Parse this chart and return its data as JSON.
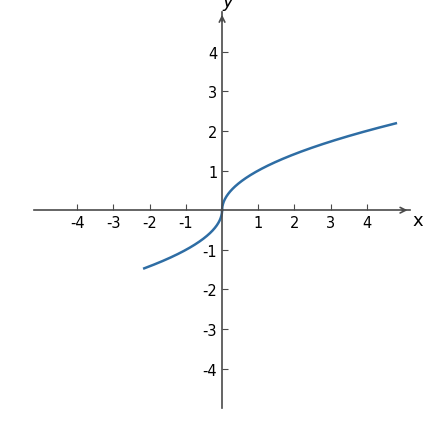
{
  "curve_color": "#2e6da4",
  "curve_linewidth": 1.8,
  "xlim": [
    -5.2,
    5.2
  ],
  "ylim": [
    -5.0,
    5.0
  ],
  "xticks": [
    -4,
    -3,
    -2,
    -1,
    1,
    2,
    3,
    4
  ],
  "yticks": [
    -4,
    -3,
    -2,
    -1,
    1,
    2,
    3,
    4
  ],
  "xlabel": "x",
  "ylabel": "y",
  "axis_color": "#4a4a4a",
  "tick_fontsize": 10.5,
  "label_fontsize": 13,
  "background_color": "#ffffff",
  "x_pos_end": 4.8,
  "x_neg_start": -2.15
}
